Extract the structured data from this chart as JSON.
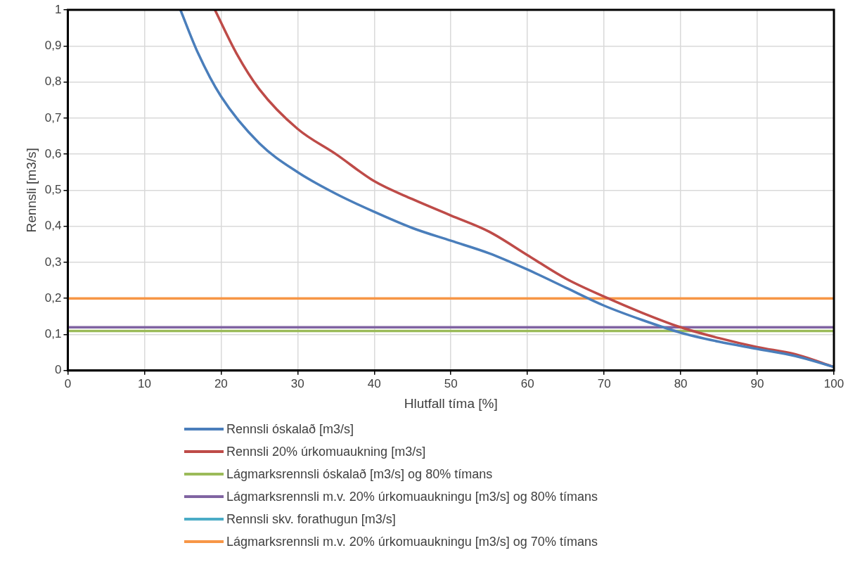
{
  "chart_data": {
    "type": "line",
    "xlabel": "Hlutfall tíma [%]",
    "ylabel": "Rennsli [m3/s]",
    "xlim": [
      0,
      100
    ],
    "xticks": [
      0,
      10,
      20,
      30,
      40,
      50,
      60,
      70,
      80,
      90,
      100
    ],
    "ylim": [
      0,
      1
    ],
    "yticks": [
      0,
      {
        "value": 0.1,
        "label": "0,1"
      },
      {
        "value": 0.2,
        "label": "0,2"
      },
      {
        "value": 0.3,
        "label": "0,3"
      },
      {
        "value": 0.4,
        "label": "0,4"
      },
      {
        "value": 0.5,
        "label": "0,5"
      },
      {
        "value": 0.6,
        "label": "0,6"
      },
      {
        "value": 0.7,
        "label": "0,7"
      },
      {
        "value": 0.8,
        "label": "0,8"
      },
      {
        "value": 0.9,
        "label": "0,9"
      },
      1
    ],
    "grid": true,
    "legend": "bottom",
    "marker": "none",
    "line_style": "solid",
    "series": [
      {
        "name": "Rennsli óskalað [m3/s]",
        "color": "#4a7ebb",
        "x": [
          14.7,
          17,
          20,
          25,
          30,
          35,
          40,
          45,
          50,
          55,
          60,
          65,
          70,
          75,
          80,
          85,
          90,
          95,
          100
        ],
        "values": [
          1,
          0.88,
          0.76,
          0.63,
          0.55,
          0.49,
          0.44,
          0.395,
          0.36,
          0.325,
          0.28,
          0.23,
          0.18,
          0.14,
          0.105,
          0.08,
          0.06,
          0.04,
          0.01
        ]
      },
      {
        "name": "Rennsli 20% úrkomuaukning [m3/s]",
        "color": "#be4b48",
        "x": [
          19.2,
          22,
          25,
          30,
          35,
          40,
          45,
          50,
          55,
          60,
          65,
          70,
          75,
          80,
          85,
          90,
          95,
          100
        ],
        "values": [
          1,
          0.88,
          0.78,
          0.67,
          0.6,
          0.525,
          0.475,
          0.43,
          0.385,
          0.32,
          0.255,
          0.205,
          0.16,
          0.12,
          0.09,
          0.065,
          0.045,
          0.01
        ]
      },
      {
        "name": "Lágmarksrennsli óskalað [m3/s] og 80% tímans",
        "color": "#9bbb59",
        "x": [
          0,
          100
        ],
        "values": [
          0.11,
          0.11
        ]
      },
      {
        "name": "Lágmarksrennsli m.v. 20% úrkomuaukningu [m3/s] og 80% tímans",
        "color": "#8064a2",
        "x": [
          0,
          100
        ],
        "values": [
          0.12,
          0.12
        ]
      },
      {
        "name": "Rennsli skv. forathugun [m3/s]",
        "color": "#4bacc6"
      },
      {
        "name": "Lágmarksrennsli m.v. 20% úrkomuaukningu [m3/s] og 70% tímans",
        "color": "#f79646",
        "x": [
          0,
          100
        ],
        "values": [
          0.2,
          0.2
        ]
      }
    ]
  }
}
